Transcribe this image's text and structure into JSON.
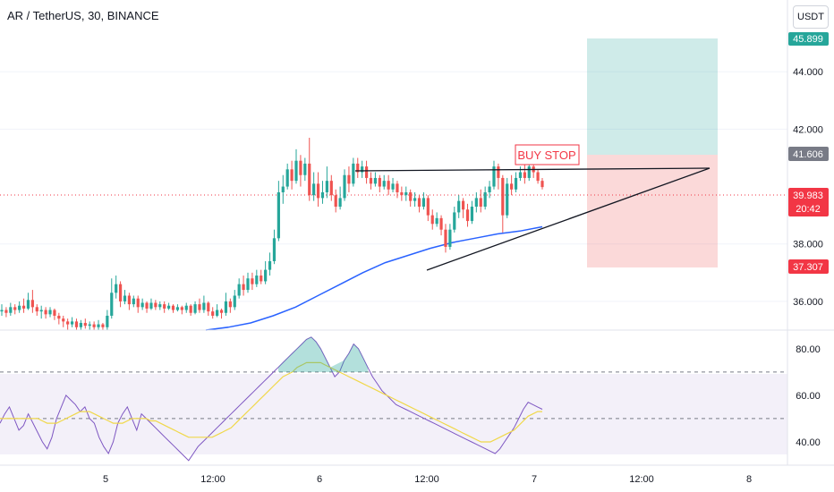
{
  "header": {
    "title": "AR / TetherUS, 30, BINANCE",
    "currency": "USDT"
  },
  "colors": {
    "up": "#26a69a",
    "down": "#ef5350",
    "ma": "#2962ff",
    "rsi": "#7e57c2",
    "rsi_ma": "#f0d84a",
    "price_line": "#f23645"
  },
  "chart_data": [
    {
      "type": "candlestick",
      "title": "AR / TetherUS, 30, BINANCE",
      "ylim": [
        35.0,
        46.5
      ],
      "y_ticks": [
        "44.000",
        "42.000",
        "38.000",
        "36.000"
      ],
      "x_ticks": [
        "5",
        "12:00",
        "6",
        "12:00",
        "7",
        "12:00",
        "8"
      ],
      "current_price": "39.983",
      "countdown": "20:42",
      "target_price": "45.899",
      "stop_price": "37.307",
      "entry_price": "41.606",
      "annotation": "BUY STOP",
      "ma_values": [
        35.0,
        35.1,
        35.25,
        35.5,
        35.8,
        36.2,
        36.6,
        37.0,
        37.35,
        37.6,
        37.85,
        38.05,
        38.2,
        38.35,
        38.45,
        38.6
      ],
      "candles": [
        [
          35.65,
          35.7,
          35.5,
          35.9
        ],
        [
          35.7,
          35.6,
          35.45,
          35.8
        ],
        [
          35.6,
          35.8,
          35.5,
          35.95
        ],
        [
          35.8,
          35.7,
          35.55,
          35.9
        ],
        [
          35.7,
          35.85,
          35.6,
          36.0
        ],
        [
          35.85,
          35.75,
          35.6,
          36.1
        ],
        [
          35.75,
          36.05,
          35.7,
          36.3
        ],
        [
          36.05,
          35.8,
          35.6,
          36.4
        ],
        [
          35.8,
          35.65,
          35.5,
          35.9
        ],
        [
          35.65,
          35.7,
          35.4,
          35.85
        ],
        [
          35.7,
          35.55,
          35.4,
          35.8
        ],
        [
          35.55,
          35.7,
          35.45,
          35.8
        ],
        [
          35.7,
          35.5,
          35.35,
          35.75
        ],
        [
          35.5,
          35.4,
          35.2,
          35.6
        ],
        [
          35.4,
          35.3,
          35.1,
          35.5
        ],
        [
          35.3,
          35.2,
          35.0,
          35.4
        ],
        [
          35.2,
          35.3,
          35.1,
          35.45
        ],
        [
          35.3,
          35.1,
          35.0,
          35.4
        ],
        [
          35.1,
          35.25,
          35.0,
          35.35
        ],
        [
          35.25,
          35.15,
          35.05,
          35.4
        ],
        [
          35.15,
          35.2,
          35.0,
          35.3
        ],
        [
          35.2,
          35.1,
          35.0,
          35.3
        ],
        [
          35.1,
          35.2,
          35.0,
          35.35
        ],
        [
          35.2,
          35.1,
          35.0,
          35.25
        ],
        [
          35.1,
          35.5,
          35.0,
          35.7
        ],
        [
          35.5,
          36.3,
          35.4,
          36.8
        ],
        [
          36.3,
          36.6,
          36.1,
          36.9
        ],
        [
          36.6,
          36.0,
          35.8,
          36.7
        ],
        [
          36.0,
          36.2,
          35.9,
          36.4
        ],
        [
          36.2,
          35.9,
          35.7,
          36.3
        ],
        [
          35.9,
          36.1,
          35.8,
          36.2
        ],
        [
          36.1,
          35.8,
          35.6,
          36.2
        ],
        [
          35.8,
          35.95,
          35.7,
          36.1
        ],
        [
          35.95,
          35.75,
          35.6,
          36.0
        ],
        [
          35.75,
          35.95,
          35.7,
          36.1
        ],
        [
          35.95,
          35.8,
          35.7,
          36.05
        ],
        [
          35.8,
          35.9,
          35.7,
          36.0
        ],
        [
          35.9,
          35.75,
          35.6,
          36.0
        ],
        [
          35.75,
          35.85,
          35.7,
          35.95
        ],
        [
          35.85,
          35.7,
          35.6,
          35.9
        ],
        [
          35.7,
          35.8,
          35.65,
          35.9
        ],
        [
          35.8,
          35.7,
          35.55,
          35.85
        ],
        [
          35.7,
          35.85,
          35.6,
          35.95
        ],
        [
          35.85,
          35.6,
          35.5,
          35.9
        ],
        [
          35.6,
          35.9,
          35.55,
          36.0
        ],
        [
          35.9,
          35.7,
          35.6,
          36.1
        ],
        [
          35.7,
          35.95,
          35.6,
          36.2
        ],
        [
          35.95,
          35.65,
          35.5,
          36.0
        ],
        [
          35.65,
          35.5,
          35.4,
          35.8
        ],
        [
          35.5,
          35.7,
          35.45,
          35.9
        ],
        [
          35.7,
          35.6,
          35.4,
          35.75
        ],
        [
          35.6,
          36.0,
          35.5,
          36.3
        ],
        [
          36.0,
          35.8,
          35.6,
          36.1
        ],
        [
          35.8,
          36.2,
          35.7,
          36.4
        ],
        [
          36.2,
          36.6,
          36.1,
          36.8
        ],
        [
          36.6,
          36.4,
          36.2,
          36.9
        ],
        [
          36.4,
          36.8,
          36.3,
          37.0
        ],
        [
          36.8,
          36.6,
          36.4,
          37.0
        ],
        [
          36.6,
          36.9,
          36.5,
          37.1
        ],
        [
          36.9,
          36.7,
          36.6,
          37.1
        ],
        [
          36.7,
          37.1,
          36.6,
          37.4
        ],
        [
          37.1,
          37.4,
          36.9,
          37.7
        ],
        [
          37.4,
          38.2,
          37.3,
          38.5
        ],
        [
          38.2,
          39.8,
          38.1,
          40.2
        ],
        [
          39.8,
          40.0,
          39.4,
          40.4
        ],
        [
          40.0,
          40.6,
          39.9,
          40.8
        ],
        [
          40.6,
          40.2,
          39.9,
          40.9
        ],
        [
          40.2,
          40.9,
          40.1,
          41.3
        ],
        [
          40.9,
          40.4,
          40.0,
          41.1
        ],
        [
          40.4,
          40.8,
          40.2,
          41.0
        ],
        [
          40.8,
          39.7,
          39.5,
          41.7
        ],
        [
          39.7,
          40.1,
          39.5,
          40.5
        ],
        [
          40.1,
          39.6,
          39.3,
          40.5
        ],
        [
          39.6,
          39.8,
          39.4,
          40.2
        ],
        [
          39.8,
          40.2,
          39.6,
          40.7
        ],
        [
          40.2,
          39.7,
          39.5,
          40.4
        ],
        [
          39.7,
          39.3,
          39.1,
          39.9
        ],
        [
          39.3,
          39.6,
          39.2,
          40.0
        ],
        [
          39.6,
          40.4,
          39.5,
          40.6
        ],
        [
          40.4,
          40.1,
          39.8,
          40.7
        ],
        [
          40.1,
          40.8,
          40.0,
          41.0
        ],
        [
          40.8,
          40.5,
          40.3,
          41.0
        ],
        [
          40.5,
          40.7,
          40.3,
          40.9
        ],
        [
          40.7,
          40.3,
          40.1,
          40.9
        ],
        [
          40.3,
          40.1,
          39.9,
          40.5
        ],
        [
          40.1,
          40.3,
          40.0,
          40.5
        ],
        [
          40.3,
          40.0,
          39.8,
          40.4
        ],
        [
          40.0,
          40.2,
          39.9,
          40.4
        ],
        [
          40.2,
          39.9,
          39.7,
          40.4
        ],
        [
          39.9,
          40.1,
          39.8,
          40.3
        ],
        [
          40.1,
          39.8,
          39.6,
          40.2
        ],
        [
          39.8,
          39.7,
          39.5,
          40.0
        ],
        [
          39.7,
          39.8,
          39.5,
          40.0
        ],
        [
          39.8,
          39.5,
          39.3,
          39.9
        ],
        [
          39.5,
          39.6,
          39.3,
          39.8
        ],
        [
          39.6,
          39.3,
          39.1,
          39.7
        ],
        [
          39.3,
          39.6,
          39.2,
          39.8
        ],
        [
          39.6,
          39.0,
          38.8,
          39.7
        ],
        [
          39.0,
          38.7,
          38.5,
          39.2
        ],
        [
          38.7,
          38.9,
          38.6,
          39.1
        ],
        [
          38.9,
          38.5,
          38.3,
          39.0
        ],
        [
          38.5,
          37.9,
          37.7,
          38.7
        ],
        [
          37.9,
          38.5,
          37.8,
          38.7
        ],
        [
          38.5,
          39.1,
          38.4,
          39.3
        ],
        [
          39.1,
          39.5,
          38.9,
          39.7
        ],
        [
          39.5,
          39.2,
          38.9,
          39.6
        ],
        [
          39.2,
          38.8,
          38.6,
          39.4
        ],
        [
          38.8,
          39.3,
          38.7,
          39.5
        ],
        [
          39.3,
          39.6,
          39.1,
          39.8
        ],
        [
          39.6,
          39.3,
          39.1,
          39.9
        ],
        [
          39.3,
          39.8,
          39.2,
          40.0
        ],
        [
          39.8,
          40.0,
          39.6,
          40.2
        ],
        [
          40.0,
          40.7,
          39.9,
          40.9
        ],
        [
          40.7,
          40.3,
          39.9,
          40.8
        ],
        [
          40.3,
          39.0,
          38.4,
          40.4
        ],
        [
          39.0,
          40.1,
          38.9,
          40.3
        ],
        [
          40.1,
          39.9,
          39.7,
          40.4
        ],
        [
          39.9,
          40.3,
          39.8,
          40.5
        ],
        [
          40.3,
          40.5,
          40.2,
          40.7
        ],
        [
          40.5,
          40.3,
          40.1,
          40.9
        ],
        [
          40.3,
          40.7,
          40.2,
          41.0
        ],
        [
          40.7,
          40.5,
          40.3,
          40.8
        ],
        [
          40.5,
          40.2,
          40.1,
          40.6
        ],
        [
          40.2,
          39.983,
          39.9,
          40.3
        ]
      ]
    },
    {
      "type": "line",
      "title": "",
      "ylim": [
        30,
        88
      ],
      "y_ticks": [
        "80.00",
        "60.00",
        "40.00"
      ],
      "bands": [
        70,
        50,
        30
      ],
      "series": [
        {
          "values": [
            48,
            52,
            55,
            50,
            45,
            47,
            52,
            48,
            44,
            40,
            37,
            42,
            50,
            55,
            60,
            58,
            56,
            53,
            55,
            50,
            48,
            42,
            38,
            35,
            40,
            48,
            52,
            55,
            50,
            45,
            52,
            50,
            48,
            46,
            44,
            42,
            40,
            38,
            36,
            34,
            32,
            35,
            38,
            40,
            42,
            44,
            46,
            48,
            50,
            52,
            54,
            56,
            58,
            60,
            62,
            64,
            66,
            68,
            70,
            72,
            74,
            76,
            78,
            80,
            82,
            84,
            85,
            83,
            80,
            76,
            72,
            68,
            70,
            75,
            78,
            82,
            80,
            76,
            72,
            68,
            65,
            62,
            60,
            58,
            56,
            55,
            54,
            53,
            52,
            51,
            50,
            49,
            48,
            47,
            46,
            45,
            44,
            43,
            42,
            41,
            40,
            39,
            38,
            37,
            36,
            35,
            37,
            40,
            43,
            46,
            50,
            54,
            57,
            56,
            55,
            54
          ]
        },
        {
          "values": [
            50,
            50,
            50,
            50,
            50,
            50,
            50,
            50,
            50,
            49,
            48,
            48,
            48,
            49,
            50,
            51,
            52,
            53,
            53,
            53,
            52,
            51,
            50,
            49,
            48,
            48,
            48,
            49,
            50,
            50,
            50,
            50,
            49,
            49,
            48,
            47,
            46,
            45,
            44,
            43,
            42,
            42,
            42,
            42,
            42,
            42,
            43,
            44,
            45,
            46,
            48,
            50,
            52,
            54,
            56,
            58,
            60,
            62,
            64,
            66,
            68,
            69,
            70,
            72,
            73,
            74,
            74,
            74,
            74,
            73,
            72,
            71,
            70,
            69,
            68,
            67,
            66,
            65,
            64,
            63,
            62,
            61,
            60,
            59,
            58,
            57,
            56,
            55,
            54,
            53,
            52,
            51,
            50,
            49,
            48,
            47,
            46,
            45,
            44,
            43,
            42,
            41,
            40,
            40,
            40,
            41,
            42,
            43,
            44,
            45,
            47,
            49,
            51,
            52,
            53,
            53
          ]
        }
      ]
    }
  ]
}
